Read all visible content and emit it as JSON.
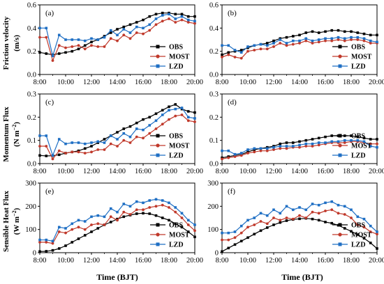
{
  "colors": {
    "OBS": "#000000",
    "MOST": "#c0392b",
    "LZD": "#1f6fc4"
  },
  "labels": {
    "y_row0_line1": "Friction velocity",
    "y_row0_line2": "(m/s)",
    "y_row1_line1": "Momentum Flux",
    "y_row1_line2": "(N m",
    "y_row1_sup": "−2",
    "y_row1_close": ")",
    "y_row2_line1": "Sensible Heat Flux",
    "y_row2_line2": "(W m",
    "y_row2_sup": "−2",
    "y_row2_close": ")",
    "x_left": "Time (BJT)",
    "x_right": "Time (BJT)"
  },
  "chart_data": [
    {
      "type": "line",
      "panel": "(a)",
      "xlim": [
        8,
        20
      ],
      "ylim": [
        0,
        0.6
      ],
      "xticks": [
        "8:00",
        "10:00",
        "12:00",
        "14:00",
        "16:00",
        "18:00",
        "20:00"
      ],
      "yticks": [
        "0.0",
        "0.2",
        "0.4",
        "0.6"
      ],
      "x": [
        8,
        8.5,
        9,
        9.5,
        10,
        10.5,
        11,
        11.5,
        12,
        12.5,
        13,
        13.5,
        14,
        14.5,
        15,
        15.5,
        16,
        16.5,
        17,
        17.5,
        18,
        18.5,
        19,
        19.5,
        20
      ],
      "series": [
        {
          "name": "OBS",
          "values": [
            0.19,
            0.18,
            0.17,
            0.18,
            0.19,
            0.2,
            0.22,
            0.25,
            0.28,
            0.3,
            0.33,
            0.36,
            0.39,
            0.41,
            0.43,
            0.45,
            0.47,
            0.5,
            0.52,
            0.53,
            0.53,
            0.52,
            0.52,
            0.5,
            0.5
          ]
        },
        {
          "name": "MOST",
          "values": [
            0.32,
            0.32,
            0.12,
            0.25,
            0.23,
            0.24,
            0.25,
            0.22,
            0.25,
            0.24,
            0.24,
            0.31,
            0.29,
            0.34,
            0.31,
            0.36,
            0.35,
            0.38,
            0.43,
            0.46,
            0.48,
            0.45,
            0.47,
            0.45,
            0.44
          ]
        },
        {
          "name": "LZD",
          "values": [
            0.4,
            0.4,
            0.16,
            0.34,
            0.3,
            0.3,
            0.3,
            0.29,
            0.31,
            0.3,
            0.32,
            0.38,
            0.34,
            0.39,
            0.36,
            0.41,
            0.4,
            0.43,
            0.48,
            0.51,
            0.52,
            0.48,
            0.5,
            0.47,
            0.46
          ]
        }
      ]
    },
    {
      "type": "line",
      "panel": "(b)",
      "xlim": [
        8,
        20
      ],
      "ylim": [
        0,
        0.6
      ],
      "xticks": [
        "8:00",
        "10:00",
        "12:00",
        "14:00",
        "16:00",
        "18:00",
        "20:00"
      ],
      "yticks": [
        "0.0",
        "0.2",
        "0.4",
        "0.6"
      ],
      "x": [
        8,
        8.5,
        9,
        9.5,
        10,
        10.5,
        11,
        11.5,
        12,
        12.5,
        13,
        13.5,
        14,
        14.5,
        15,
        15.5,
        16,
        16.5,
        17,
        17.5,
        18,
        18.5,
        19,
        19.5,
        20
      ],
      "series": [
        {
          "name": "OBS",
          "values": [
            0.17,
            0.19,
            0.2,
            0.21,
            0.23,
            0.25,
            0.26,
            0.27,
            0.29,
            0.31,
            0.32,
            0.33,
            0.34,
            0.36,
            0.37,
            0.36,
            0.37,
            0.38,
            0.38,
            0.37,
            0.37,
            0.36,
            0.35,
            0.34,
            0.34
          ]
        },
        {
          "name": "MOST",
          "values": [
            0.15,
            0.17,
            0.15,
            0.14,
            0.2,
            0.21,
            0.22,
            0.22,
            0.24,
            0.27,
            0.25,
            0.26,
            0.27,
            0.29,
            0.27,
            0.28,
            0.29,
            0.29,
            0.3,
            0.29,
            0.3,
            0.3,
            0.29,
            0.27,
            0.27
          ]
        },
        {
          "name": "LZD",
          "values": [
            0.25,
            0.25,
            0.21,
            0.19,
            0.24,
            0.25,
            0.26,
            0.25,
            0.27,
            0.3,
            0.27,
            0.29,
            0.29,
            0.31,
            0.29,
            0.3,
            0.31,
            0.31,
            0.32,
            0.31,
            0.32,
            0.32,
            0.31,
            0.29,
            0.28
          ]
        }
      ]
    },
    {
      "type": "line",
      "panel": "(c)",
      "xlim": [
        8,
        20
      ],
      "ylim": [
        0,
        0.3
      ],
      "xticks": [
        "8:00",
        "10:00",
        "12:00",
        "14:00",
        "16:00",
        "18:00",
        "20:00"
      ],
      "yticks": [
        "0.0",
        "0.1",
        "0.2",
        "0.3"
      ],
      "x": [
        8,
        8.5,
        9,
        9.5,
        10,
        10.5,
        11,
        11.5,
        12,
        12.5,
        13,
        13.5,
        14,
        14.5,
        15,
        15.5,
        16,
        16.5,
        17,
        17.5,
        18,
        18.5,
        19,
        19.5,
        20
      ],
      "series": [
        {
          "name": "OBS",
          "values": [
            0.035,
            0.033,
            0.034,
            0.038,
            0.045,
            0.05,
            0.055,
            0.065,
            0.075,
            0.09,
            0.105,
            0.12,
            0.135,
            0.15,
            0.16,
            0.175,
            0.19,
            0.2,
            0.215,
            0.23,
            0.245,
            0.255,
            0.235,
            0.225,
            0.22
          ]
        },
        {
          "name": "MOST",
          "values": [
            0.075,
            0.075,
            0.02,
            0.055,
            0.045,
            0.05,
            0.05,
            0.045,
            0.05,
            0.06,
            0.06,
            0.085,
            0.075,
            0.1,
            0.09,
            0.115,
            0.11,
            0.13,
            0.15,
            0.17,
            0.19,
            0.205,
            0.21,
            0.185,
            0.18
          ]
        },
        {
          "name": "LZD",
          "values": [
            0.12,
            0.12,
            0.035,
            0.105,
            0.085,
            0.09,
            0.09,
            0.085,
            0.09,
            0.095,
            0.09,
            0.12,
            0.105,
            0.13,
            0.115,
            0.15,
            0.145,
            0.165,
            0.185,
            0.21,
            0.23,
            0.235,
            0.24,
            0.2,
            0.195
          ]
        }
      ]
    },
    {
      "type": "line",
      "panel": "(d)",
      "xlim": [
        8,
        20
      ],
      "ylim": [
        0,
        0.3
      ],
      "xticks": [
        "8:00",
        "10:00",
        "12:00",
        "14:00",
        "16:00",
        "18:00",
        "20:00"
      ],
      "yticks": [
        "0.0",
        "0.1",
        "0.2",
        "0.3"
      ],
      "x": [
        8,
        8.5,
        9,
        9.5,
        10,
        10.5,
        11,
        11.5,
        12,
        12.5,
        13,
        13.5,
        14,
        14.5,
        15,
        15.5,
        16,
        16.5,
        17,
        17.5,
        18,
        18.5,
        19,
        19.5,
        20
      ],
      "series": [
        {
          "name": "OBS",
          "values": [
            0.025,
            0.03,
            0.035,
            0.04,
            0.05,
            0.06,
            0.065,
            0.07,
            0.075,
            0.085,
            0.09,
            0.09,
            0.095,
            0.1,
            0.105,
            0.11,
            0.115,
            0.12,
            0.12,
            0.12,
            0.12,
            0.115,
            0.11,
            0.105,
            0.105
          ]
        },
        {
          "name": "MOST",
          "values": [
            0.02,
            0.025,
            0.03,
            0.035,
            0.045,
            0.05,
            0.055,
            0.055,
            0.06,
            0.065,
            0.065,
            0.07,
            0.07,
            0.075,
            0.075,
            0.08,
            0.085,
            0.09,
            0.09,
            0.09,
            0.095,
            0.095,
            0.09,
            0.085,
            0.085
          ]
        },
        {
          "name": "LZD",
          "values": [
            0.055,
            0.055,
            0.04,
            0.045,
            0.06,
            0.065,
            0.065,
            0.065,
            0.07,
            0.075,
            0.075,
            0.075,
            0.08,
            0.085,
            0.085,
            0.09,
            0.09,
            0.095,
            0.095,
            0.1,
            0.1,
            0.1,
            0.095,
            0.075,
            0.07
          ]
        }
      ]
    },
    {
      "type": "line",
      "panel": "(e)",
      "xlim": [
        8,
        20
      ],
      "ylim": [
        0,
        300
      ],
      "xticks": [
        "8:00",
        "10:00",
        "12:00",
        "14:00",
        "16:00",
        "18:00",
        "20:00"
      ],
      "yticks": [
        "0",
        "100",
        "200",
        "300"
      ],
      "x": [
        8,
        8.5,
        9,
        9.5,
        10,
        10.5,
        11,
        11.5,
        12,
        12.5,
        13,
        13.5,
        14,
        14.5,
        15,
        15.5,
        16,
        16.5,
        17,
        17.5,
        18,
        18.5,
        19,
        19.5,
        20
      ],
      "series": [
        {
          "name": "OBS",
          "values": [
            5,
            6,
            10,
            18,
            30,
            45,
            60,
            75,
            90,
            105,
            120,
            132,
            145,
            155,
            162,
            168,
            170,
            168,
            160,
            150,
            140,
            125,
            110,
            90,
            68
          ]
        },
        {
          "name": "MOST",
          "values": [
            45,
            45,
            40,
            90,
            85,
            100,
            110,
            100,
            120,
            125,
            120,
            155,
            140,
            175,
            165,
            185,
            185,
            195,
            200,
            205,
            195,
            175,
            150,
            120,
            95
          ]
        },
        {
          "name": "LZD",
          "values": [
            55,
            55,
            50,
            110,
            105,
            125,
            140,
            135,
            155,
            160,
            155,
            190,
            175,
            210,
            200,
            220,
            215,
            225,
            230,
            225,
            215,
            195,
            170,
            140,
            120
          ]
        }
      ]
    },
    {
      "type": "line",
      "panel": "(f)",
      "xlim": [
        8,
        20
      ],
      "ylim": [
        0,
        300
      ],
      "xticks": [
        "8:00",
        "10:00",
        "12:00",
        "14:00",
        "16:00",
        "18:00",
        "20:00"
      ],
      "yticks": [
        "0",
        "100",
        "200",
        "300"
      ],
      "x": [
        8,
        8.5,
        9,
        9.5,
        10,
        10.5,
        11,
        11.5,
        12,
        12.5,
        13,
        13.5,
        14,
        14.5,
        15,
        15.5,
        16,
        16.5,
        17,
        17.5,
        18,
        18.5,
        19,
        19.5,
        20
      ],
      "series": [
        {
          "name": "OBS",
          "values": [
            5,
            20,
            35,
            50,
            65,
            80,
            95,
            108,
            120,
            130,
            138,
            143,
            146,
            148,
            145,
            140,
            132,
            127,
            118,
            105,
            92,
            78,
            62,
            42,
            18
          ]
        },
        {
          "name": "MOST",
          "values": [
            55,
            55,
            65,
            85,
            110,
            120,
            135,
            125,
            150,
            140,
            150,
            145,
            160,
            150,
            175,
            170,
            180,
            185,
            170,
            165,
            150,
            120,
            110,
            90,
            80
          ]
        },
        {
          "name": "LZD",
          "values": [
            85,
            85,
            90,
            115,
            140,
            150,
            170,
            160,
            185,
            170,
            200,
            185,
            195,
            185,
            210,
            205,
            215,
            220,
            205,
            200,
            185,
            155,
            145,
            115,
            90
          ]
        }
      ]
    }
  ]
}
